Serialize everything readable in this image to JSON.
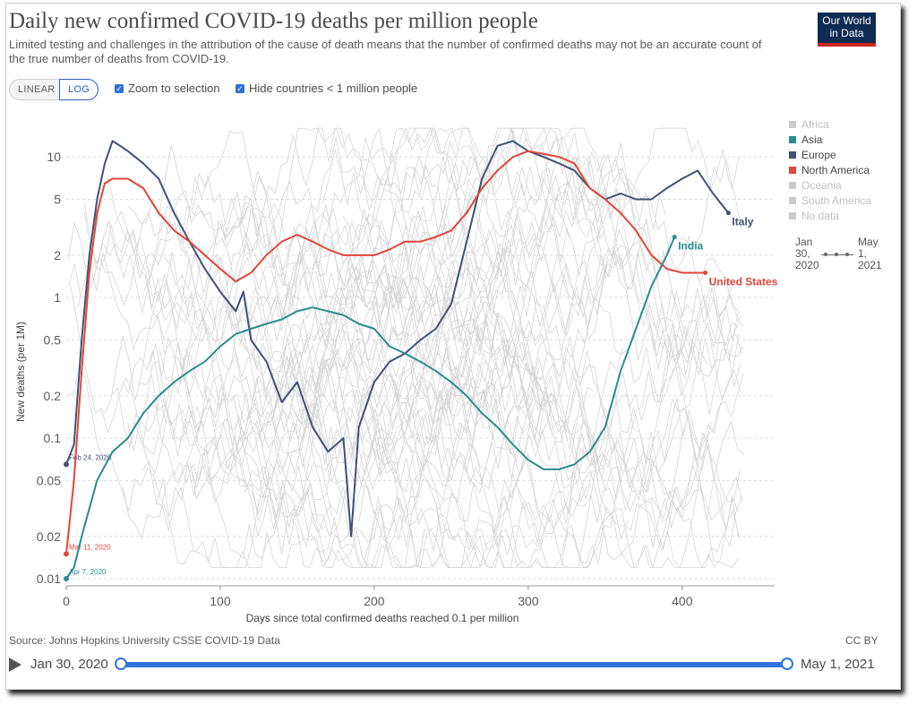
{
  "header": {
    "title": "Daily new confirmed COVID-19 deaths per million people",
    "subtitle": "Limited testing and challenges in the attribution of the cause of death means that the number of confirmed deaths may not be an accurate count of the true number of deaths from COVID-19.",
    "logo": "Our World in Data"
  },
  "controls": {
    "linear_label": "LINEAR",
    "log_label": "LOG",
    "zoom_label": "Zoom to selection",
    "hide_label": "Hide countries < 1 million people"
  },
  "legend": [
    {
      "name": "Africa",
      "color": "#cccccc",
      "muted": true
    },
    {
      "name": "Asia",
      "color": "#2b8c8c",
      "muted": false
    },
    {
      "name": "Europe",
      "color": "#3f5175",
      "muted": false
    },
    {
      "name": "North America",
      "color": "#e2453c",
      "muted": false
    },
    {
      "name": "Oceania",
      "color": "#cccccc",
      "muted": true
    },
    {
      "name": "South America",
      "color": "#cccccc",
      "muted": true
    },
    {
      "name": "No data",
      "color": "#cccccc",
      "muted": true
    }
  ],
  "time_legend": {
    "start": "Jan 30, 2020",
    "end": "May 1, 2021"
  },
  "footer": {
    "source": "Source: Johns Hopkins University CSSE COVID-19 Data",
    "license": "CC BY"
  },
  "timeline": {
    "start": "Jan 30, 2020",
    "end": "May 1, 2021"
  },
  "chart_data": {
    "type": "line",
    "title": "Daily new confirmed COVID-19 deaths per million people",
    "xlabel": "Days since total confirmed deaths reached 0.1 per million",
    "ylabel": "New deaths (per 1M)",
    "yscale": "log",
    "xlim": [
      0,
      460
    ],
    "ylim": [
      0.01,
      20
    ],
    "x_ticks": [
      0,
      100,
      200,
      300,
      400
    ],
    "y_ticks": [
      0.01,
      0.02,
      0.05,
      0.1,
      0.2,
      0.5,
      1,
      2,
      5,
      10
    ],
    "y_tick_labels": [
      "0.01",
      "0.02",
      "0.05",
      "0.1",
      "0.2",
      "0.5",
      "1",
      "2",
      "5",
      "10"
    ],
    "grid": "horizontal dashed",
    "series": [
      {
        "name": "Italy",
        "region": "Europe",
        "color": "#3f5175",
        "start_label": "Feb 24, 2020",
        "points": [
          [
            0,
            0.065
          ],
          [
            5,
            0.09
          ],
          [
            10,
            0.5
          ],
          [
            15,
            2
          ],
          [
            20,
            5
          ],
          [
            25,
            9
          ],
          [
            30,
            13
          ],
          [
            35,
            12
          ],
          [
            40,
            11
          ],
          [
            50,
            9
          ],
          [
            60,
            7
          ],
          [
            70,
            4
          ],
          [
            80,
            2.5
          ],
          [
            90,
            1.6
          ],
          [
            100,
            1.1
          ],
          [
            110,
            0.8
          ],
          [
            115,
            1.1
          ],
          [
            120,
            0.5
          ],
          [
            130,
            0.35
          ],
          [
            140,
            0.18
          ],
          [
            150,
            0.25
          ],
          [
            160,
            0.12
          ],
          [
            170,
            0.08
          ],
          [
            180,
            0.1
          ],
          [
            185,
            0.02
          ],
          [
            190,
            0.12
          ],
          [
            200,
            0.25
          ],
          [
            210,
            0.35
          ],
          [
            220,
            0.4
          ],
          [
            230,
            0.5
          ],
          [
            240,
            0.6
          ],
          [
            250,
            0.9
          ],
          [
            260,
            2.5
          ],
          [
            270,
            7
          ],
          [
            280,
            12
          ],
          [
            290,
            13
          ],
          [
            300,
            11
          ],
          [
            310,
            10
          ],
          [
            320,
            9
          ],
          [
            330,
            8
          ],
          [
            340,
            6
          ],
          [
            350,
            5
          ],
          [
            360,
            5.5
          ],
          [
            370,
            5
          ],
          [
            380,
            5
          ],
          [
            390,
            6
          ],
          [
            400,
            7
          ],
          [
            410,
            8
          ],
          [
            420,
            5.5
          ],
          [
            430,
            4
          ]
        ]
      },
      {
        "name": "United States",
        "region": "North America",
        "color": "#e2453c",
        "start_label": "Mar 11, 2020",
        "points": [
          [
            0,
            0.015
          ],
          [
            5,
            0.05
          ],
          [
            10,
            0.3
          ],
          [
            15,
            1.5
          ],
          [
            20,
            4
          ],
          [
            25,
            6.5
          ],
          [
            30,
            7
          ],
          [
            40,
            7
          ],
          [
            50,
            6
          ],
          [
            60,
            4
          ],
          [
            70,
            3
          ],
          [
            80,
            2.5
          ],
          [
            90,
            2
          ],
          [
            100,
            1.6
          ],
          [
            110,
            1.3
          ],
          [
            120,
            1.5
          ],
          [
            130,
            2
          ],
          [
            140,
            2.5
          ],
          [
            150,
            2.8
          ],
          [
            160,
            2.5
          ],
          [
            170,
            2.2
          ],
          [
            180,
            2
          ],
          [
            190,
            2
          ],
          [
            200,
            2
          ],
          [
            210,
            2.2
          ],
          [
            220,
            2.5
          ],
          [
            230,
            2.5
          ],
          [
            240,
            2.7
          ],
          [
            250,
            3
          ],
          [
            260,
            4
          ],
          [
            270,
            6
          ],
          [
            280,
            8
          ],
          [
            290,
            10
          ],
          [
            300,
            11
          ],
          [
            310,
            10.5
          ],
          [
            320,
            10
          ],
          [
            330,
            9
          ],
          [
            340,
            6
          ],
          [
            350,
            5
          ],
          [
            360,
            4
          ],
          [
            370,
            3
          ],
          [
            380,
            2
          ],
          [
            390,
            1.6
          ],
          [
            400,
            1.5
          ],
          [
            410,
            1.5
          ],
          [
            415,
            1.5
          ]
        ]
      },
      {
        "name": "India",
        "region": "Asia",
        "color": "#2b8c8c",
        "start_label": "Apr 7, 2020",
        "points": [
          [
            0,
            0.01
          ],
          [
            5,
            0.012
          ],
          [
            10,
            0.02
          ],
          [
            20,
            0.05
          ],
          [
            30,
            0.08
          ],
          [
            40,
            0.1
          ],
          [
            50,
            0.15
          ],
          [
            60,
            0.2
          ],
          [
            70,
            0.25
          ],
          [
            80,
            0.3
          ],
          [
            90,
            0.35
          ],
          [
            100,
            0.45
          ],
          [
            110,
            0.55
          ],
          [
            120,
            0.6
          ],
          [
            130,
            0.65
          ],
          [
            140,
            0.7
          ],
          [
            150,
            0.8
          ],
          [
            160,
            0.85
          ],
          [
            170,
            0.8
          ],
          [
            180,
            0.75
          ],
          [
            190,
            0.65
          ],
          [
            200,
            0.6
          ],
          [
            210,
            0.45
          ],
          [
            220,
            0.4
          ],
          [
            230,
            0.35
          ],
          [
            240,
            0.3
          ],
          [
            250,
            0.25
          ],
          [
            260,
            0.2
          ],
          [
            270,
            0.15
          ],
          [
            280,
            0.12
          ],
          [
            290,
            0.09
          ],
          [
            300,
            0.07
          ],
          [
            310,
            0.06
          ],
          [
            320,
            0.06
          ],
          [
            330,
            0.065
          ],
          [
            340,
            0.08
          ],
          [
            350,
            0.12
          ],
          [
            360,
            0.3
          ],
          [
            370,
            0.6
          ],
          [
            380,
            1.2
          ],
          [
            390,
            2
          ],
          [
            395,
            2.7
          ]
        ]
      }
    ],
    "annotations": [
      "Italy",
      "India",
      "United States",
      "Feb 24, 2020",
      "Mar 11, 2020",
      "Apr 7, 2020"
    ]
  }
}
